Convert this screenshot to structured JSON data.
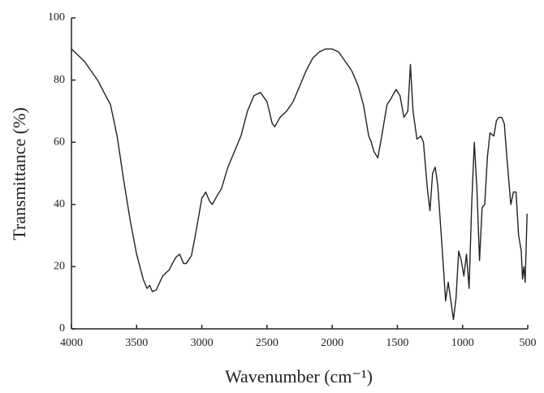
{
  "chart_data": {
    "type": "line",
    "xlabel": "Wavenumber (cm⁻¹)",
    "ylabel": "Transmittance (%)",
    "xlim": [
      4000,
      500
    ],
    "xticks": [
      4000,
      3500,
      3000,
      2500,
      2000,
      1500,
      1000,
      500
    ],
    "ylim": [
      0,
      100
    ],
    "yticks": [
      0,
      20,
      40,
      60,
      80,
      100
    ],
    "grid": false,
    "color": "#222222",
    "x": [
      4000,
      3900,
      3800,
      3700,
      3650,
      3600,
      3550,
      3500,
      3450,
      3420,
      3400,
      3380,
      3350,
      3300,
      3250,
      3200,
      3170,
      3140,
      3120,
      3080,
      3050,
      3000,
      2970,
      2940,
      2920,
      2880,
      2850,
      2800,
      2700,
      2650,
      2600,
      2550,
      2500,
      2460,
      2440,
      2400,
      2350,
      2300,
      2250,
      2200,
      2150,
      2100,
      2050,
      2000,
      1950,
      1900,
      1850,
      1800,
      1760,
      1720,
      1700,
      1680,
      1650,
      1620,
      1580,
      1550,
      1510,
      1480,
      1450,
      1420,
      1400,
      1380,
      1350,
      1320,
      1300,
      1270,
      1250,
      1230,
      1210,
      1190,
      1160,
      1130,
      1110,
      1090,
      1070,
      1050,
      1030,
      1010,
      990,
      970,
      950,
      930,
      910,
      890,
      870,
      850,
      830,
      810,
      790,
      760,
      740,
      720,
      700,
      680,
      660,
      630,
      610,
      590,
      570,
      550,
      540,
      530,
      520,
      505
    ],
    "values": [
      90,
      86,
      80,
      72,
      62,
      48,
      35,
      24,
      16,
      13,
      14,
      12,
      12.5,
      17,
      19,
      23,
      24,
      21,
      21,
      23.5,
      30,
      42,
      44,
      41,
      40,
      43,
      45,
      52,
      62,
      70,
      75,
      76,
      73,
      66,
      65,
      68,
      70,
      73,
      78,
      83,
      87,
      89,
      90,
      90,
      89,
      86,
      83,
      78,
      72,
      62,
      60,
      57,
      55,
      62,
      72,
      74,
      77,
      75,
      68,
      70,
      85,
      70,
      61,
      62,
      60,
      45,
      38,
      50,
      52,
      46,
      28,
      9,
      15,
      9,
      3,
      10,
      25,
      22,
      17,
      24,
      13,
      40,
      60,
      45,
      22,
      39,
      40,
      55,
      63,
      62,
      67,
      68,
      68,
      66,
      55,
      40,
      44,
      44,
      30,
      25,
      16,
      20,
      15,
      37
    ]
  }
}
